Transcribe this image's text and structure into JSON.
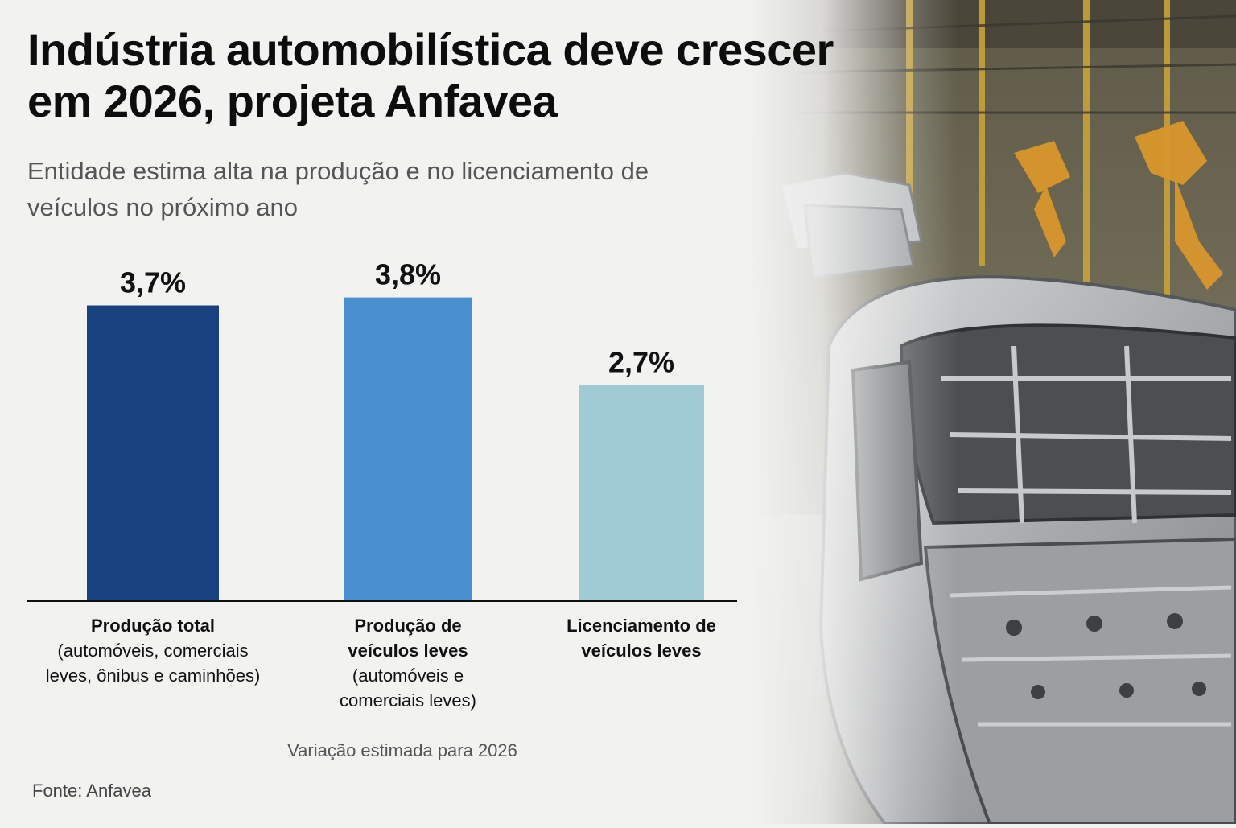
{
  "header": {
    "title": "Indústria automobilística deve crescer em 2026, projeta Anfavea",
    "subtitle": "Entidade estima alta na produção e no licenciamento de veículos no próximo ano"
  },
  "chart_data": {
    "type": "bar",
    "categories": [
      {
        "main": "Produção total",
        "detail": "(automóveis, comerciais leves, ônibus e caminhões)"
      },
      {
        "main": "Produção de veículos leves",
        "detail": "(automóveis e comerciais leves)"
      },
      {
        "main": "Licenciamento de veículos leves",
        "detail": ""
      }
    ],
    "values": [
      3.7,
      3.8,
      2.7
    ],
    "data_labels": [
      "3,7%",
      "3,8%",
      "2,7%"
    ],
    "colors": [
      "#17427f",
      "#4a8fd0",
      "#9fcbd5"
    ],
    "ylim": [
      0,
      4.2
    ],
    "grid": false,
    "legend": "none"
  },
  "footnote": "Variação estimada para 2026",
  "source": "Fonte: Anfavea",
  "photo": {
    "icon": "car-assembly-line-photo"
  }
}
